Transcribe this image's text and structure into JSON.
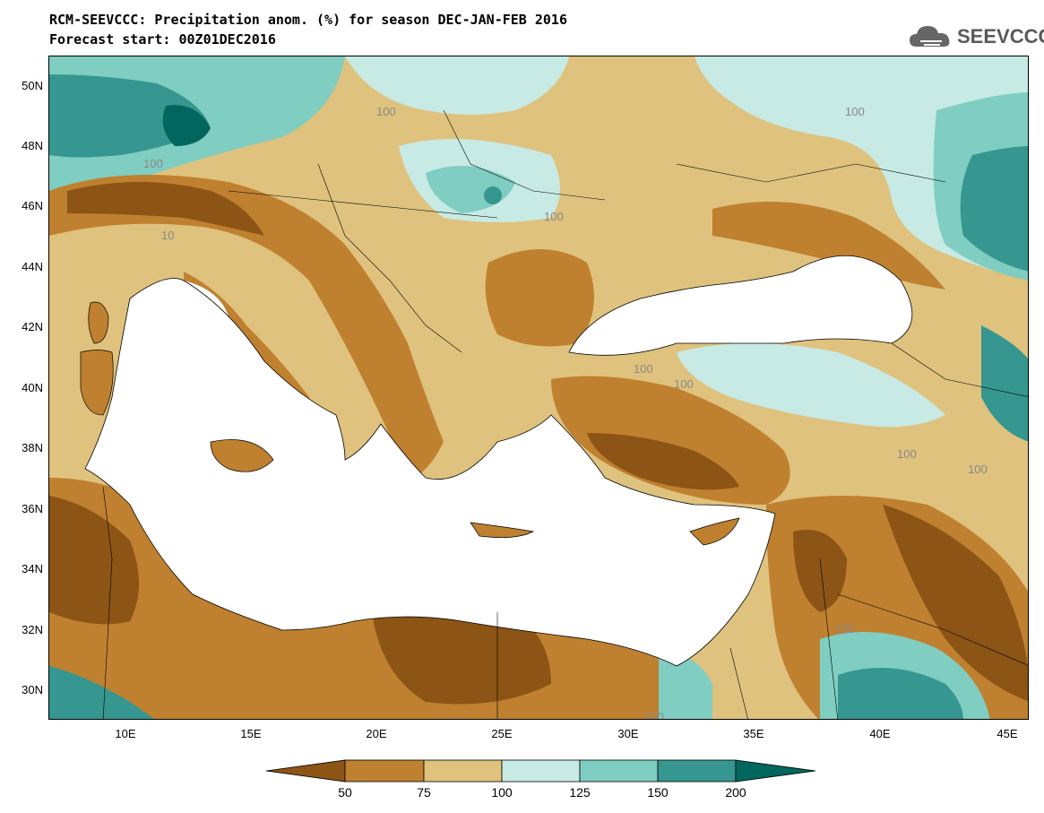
{
  "title": {
    "line1": "RCM-SEEVCCC: Precipitation anom. (%) for season DEC-JAN-FEB 2016",
    "line2": "Forecast start: 00Z01DEC2016"
  },
  "logo": {
    "text": "SEEVCCC",
    "icon": "cloud-icon"
  },
  "map": {
    "lat_labels": [
      "50N",
      "48N",
      "46N",
      "44N",
      "42N",
      "40N",
      "38N",
      "36N",
      "34N",
      "32N",
      "30N"
    ],
    "lon_labels": [
      "10E",
      "15E",
      "20E",
      "25E",
      "30E",
      "35E",
      "40E",
      "45E"
    ],
    "lon_range": [
      7,
      46
    ],
    "lat_range": [
      29,
      51
    ],
    "contour_labels": [
      "100",
      "100",
      "100",
      "10",
      "100",
      "100",
      "100",
      "100",
      "100",
      "100",
      "100"
    ]
  },
  "colorbar": {
    "ticks": [
      "50",
      "75",
      "100",
      "125",
      "150",
      "200"
    ],
    "colors": [
      "#8c5415",
      "#bf8030",
      "#dfc27d",
      "#c7eae5",
      "#80cdc1",
      "#35978f",
      "#01665e"
    ]
  }
}
